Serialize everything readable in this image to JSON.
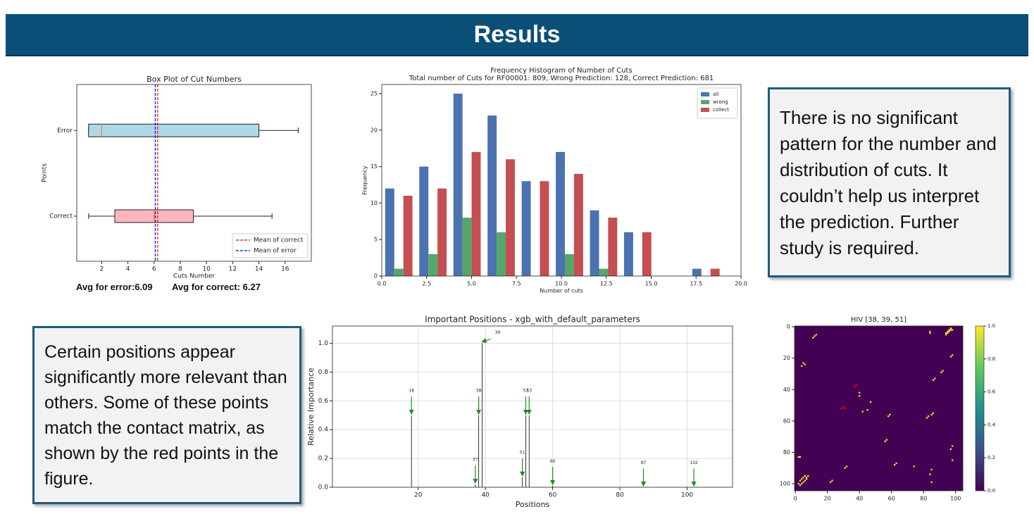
{
  "header": {
    "title": "Results"
  },
  "notes": [
    "There is no significant pattern for the number and distribution of cuts. It couldn’t help us interpret the prediction. Further study is required.",
    "Certain positions appear significantly more relevant than others. Some of these points match the contact matrix, as shown by the red points in the figure."
  ],
  "captions": [
    "Avg for error:6.09",
    "Avg for correct: 6.27"
  ],
  "chart_data": [
    {
      "type": "box",
      "title": "Box Plot of Cut Numbers",
      "xlabel": "Cuts Number",
      "ylabel": "Points",
      "categories": [
        "Error",
        "Correct"
      ],
      "min": [
        1,
        1
      ],
      "q1": [
        1,
        3
      ],
      "median": [
        2,
        6
      ],
      "q3": [
        14,
        9
      ],
      "max": [
        17,
        15
      ],
      "colors": [
        "#add8e6",
        "#ffb6c1"
      ],
      "median_color": "#ff7f0e",
      "lines": [
        {
          "name": "Mean of correct",
          "value": 6.27,
          "color": "#ff0000"
        },
        {
          "name": "Mean of error",
          "value": 6.09,
          "color": "#0000ff"
        }
      ],
      "xlim": [
        0.1,
        18
      ],
      "xticks": [
        2,
        4,
        6,
        8,
        10,
        12,
        14,
        16
      ],
      "legend": "lower right"
    },
    {
      "type": "histogram",
      "title": "Frequency Histogram of Number of Cuts",
      "subtitle": "Total number of Cuts for RF00001: 809, Wrong Prediction: 128, Correct Prediction: 681",
      "xlabel": "Number of cuts",
      "ylabel": "Frequency",
      "bins": [
        0,
        1.9,
        3.8,
        5.7,
        7.6,
        9.5,
        11.4,
        13.3,
        15.2,
        17.1,
        19
      ],
      "series": [
        {
          "name": "all",
          "color": "#4c72b0",
          "values": [
            12,
            15,
            25,
            22,
            13,
            17,
            9,
            6,
            0,
            1
          ]
        },
        {
          "name": "wrong",
          "color": "#55a868",
          "values": [
            1,
            3,
            8,
            6,
            0,
            3,
            1,
            0,
            0,
            0
          ]
        },
        {
          "name": "collect",
          "color": "#c44e52",
          "values": [
            11,
            12,
            17,
            16,
            13,
            14,
            8,
            6,
            0,
            1
          ]
        }
      ],
      "xlim": [
        0,
        20
      ],
      "xticks": [
        {
          "value": 0,
          "label": "0.0"
        },
        {
          "value": 2.5,
          "label": "2.5"
        },
        {
          "value": 5,
          "label": "5.0"
        },
        {
          "value": 7.5,
          "label": "7.5"
        },
        {
          "value": 10,
          "label": "10.0"
        },
        {
          "value": 12.5,
          "label": "12.5"
        },
        {
          "value": 15,
          "label": "15.0"
        },
        {
          "value": 17.5,
          "label": "17.5"
        },
        {
          "value": 20,
          "label": "20.0"
        }
      ],
      "ylim": [
        0,
        26.25
      ],
      "yticks": [
        0,
        5,
        10,
        15,
        20,
        25
      ],
      "legend": "upper right"
    },
    {
      "type": "stem",
      "title": "Important Positions - xgb_with_default_parameters",
      "xlabel": "Positions",
      "ylabel": "Relative Importance",
      "x": [
        18,
        37,
        38,
        39,
        51,
        52,
        53,
        60,
        87,
        102
      ],
      "values": [
        0.5,
        0.02,
        0.5,
        1.0,
        0.07,
        0.5,
        0.5,
        0.01,
        0,
        0
      ],
      "color": "#000000",
      "arrow_color": "#228b22",
      "xlim": [
        -5.5,
        113.5
      ],
      "xticks": [
        20,
        40,
        60,
        80,
        100
      ],
      "ylim": [
        0,
        1.12
      ],
      "yticks": [
        {
          "value": 0,
          "label": "0.0"
        },
        {
          "value": 0.2,
          "label": "0.2"
        },
        {
          "value": 0.4,
          "label": "0.4"
        },
        {
          "value": 0.6,
          "label": "0.6"
        },
        {
          "value": 0.8,
          "label": "0.8"
        },
        {
          "value": 1.0,
          "label": "1.0"
        }
      ],
      "grid": true
    },
    {
      "type": "heatmap",
      "title": "HIV [38, 39, 51]",
      "x": [
        12,
        13,
        11,
        84,
        84,
        94,
        95,
        96,
        97,
        95,
        96,
        97,
        98,
        94,
        98,
        97,
        5,
        6,
        4,
        92,
        91,
        87,
        86,
        40,
        40,
        47,
        42,
        45,
        58,
        59,
        82,
        83,
        85,
        86,
        57,
        56,
        98,
        97,
        2,
        3,
        63,
        62,
        74,
        32,
        31,
        85,
        98,
        84,
        85,
        23,
        22,
        3,
        4,
        5,
        6,
        7,
        2,
        3,
        4,
        5,
        6,
        7,
        8
      ],
      "y": [
        6,
        5,
        7,
        3,
        4,
        4,
        3,
        2,
        1,
        4,
        3,
        2,
        2,
        5,
        18,
        19,
        23,
        24,
        25,
        28,
        29,
        33,
        34,
        42,
        44,
        48,
        54,
        53,
        57,
        56,
        58,
        57,
        56,
        55,
        72,
        73,
        76,
        78,
        83,
        83,
        87,
        88,
        89,
        89,
        90,
        91,
        85,
        94,
        99,
        98,
        99,
        98,
        97,
        96,
        95,
        96,
        100,
        101,
        100,
        99,
        98,
        97,
        95
      ],
      "values": [
        1,
        1,
        1,
        1,
        1,
        1,
        1,
        1,
        1,
        1,
        1,
        1,
        1,
        1,
        1,
        1,
        1,
        1,
        1,
        1,
        1,
        1,
        1,
        1,
        1,
        1,
        1,
        1,
        1,
        1,
        1,
        1,
        1,
        1,
        1,
        1,
        1,
        1,
        1,
        1,
        1,
        1,
        1,
        1,
        1,
        1,
        1,
        1,
        1,
        1,
        1,
        1,
        1,
        1,
        1,
        1,
        1,
        1,
        1,
        1,
        1,
        1,
        1
      ],
      "highlight_x": [
        37,
        38,
        29,
        30,
        31
      ],
      "highlight_y": [
        38,
        37,
        52,
        51,
        52
      ],
      "highlight_color": "#ff0000",
      "xlim": [
        -0.5,
        104.5
      ],
      "ylim": [
        -0.5,
        104.5
      ],
      "xticks": [
        0,
        20,
        40,
        60,
        80,
        100
      ],
      "yticks": [
        0,
        20,
        40,
        60,
        80,
        100
      ],
      "clim": [
        0,
        1
      ],
      "colors": [
        "#440154",
        "#fde725"
      ],
      "cticks": [
        {
          "value": 0,
          "label": "0.0"
        },
        {
          "value": 0.2,
          "label": "0.2"
        },
        {
          "value": 0.4,
          "label": "0.4"
        },
        {
          "value": 0.6,
          "label": "0.6"
        },
        {
          "value": 0.8,
          "label": "0.8"
        },
        {
          "value": 1.0,
          "label": "1.0"
        }
      ]
    }
  ]
}
